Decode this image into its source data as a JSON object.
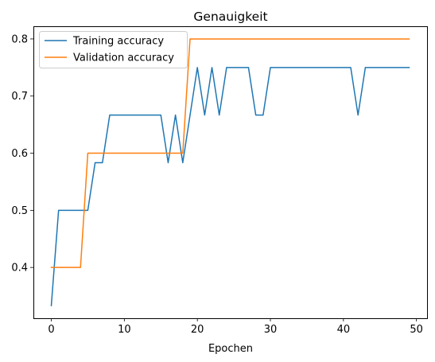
{
  "chart_data": {
    "type": "line",
    "title": "Genauigkeit",
    "xlabel": "Epochen",
    "ylabel": "",
    "xlim": [
      -2.45,
      51.45
    ],
    "ylim": [
      0.3111,
      0.8222
    ],
    "xticks": [
      0,
      10,
      20,
      30,
      40,
      50
    ],
    "yticks": [
      0.4,
      0.5,
      0.6,
      0.7,
      0.8
    ],
    "grid": false,
    "legend_position": "upper-left",
    "x": [
      0,
      1,
      2,
      3,
      4,
      5,
      6,
      7,
      8,
      9,
      10,
      11,
      12,
      13,
      14,
      15,
      16,
      17,
      18,
      19,
      20,
      21,
      22,
      23,
      24,
      25,
      26,
      27,
      28,
      29,
      30,
      31,
      32,
      33,
      34,
      35,
      36,
      37,
      38,
      39,
      40,
      41,
      42,
      43,
      44,
      45,
      46,
      47,
      48,
      49
    ],
    "series": [
      {
        "name": "Training accuracy",
        "color": "#1f77b4",
        "values": [
          0.3333,
          0.5,
          0.5,
          0.5,
          0.5,
          0.5,
          0.5833,
          0.5833,
          0.6667,
          0.6667,
          0.6667,
          0.6667,
          0.6667,
          0.6667,
          0.6667,
          0.6667,
          0.5833,
          0.6667,
          0.5833,
          0.6667,
          0.75,
          0.6667,
          0.75,
          0.6667,
          0.75,
          0.75,
          0.75,
          0.75,
          0.6667,
          0.6667,
          0.75,
          0.75,
          0.75,
          0.75,
          0.75,
          0.75,
          0.75,
          0.75,
          0.75,
          0.75,
          0.75,
          0.75,
          0.6667,
          0.75,
          0.75,
          0.75,
          0.75,
          0.75,
          0.75,
          0.75
        ]
      },
      {
        "name": "Validation accuracy",
        "color": "#ff7f0e",
        "values": [
          0.4,
          0.4,
          0.4,
          0.4,
          0.4,
          0.6,
          0.6,
          0.6,
          0.6,
          0.6,
          0.6,
          0.6,
          0.6,
          0.6,
          0.6,
          0.6,
          0.6,
          0.6,
          0.6,
          0.8,
          0.8,
          0.8,
          0.8,
          0.8,
          0.8,
          0.8,
          0.8,
          0.8,
          0.8,
          0.8,
          0.8,
          0.8,
          0.8,
          0.8,
          0.8,
          0.8,
          0.8,
          0.8,
          0.8,
          0.8,
          0.8,
          0.8,
          0.8,
          0.8,
          0.8,
          0.8,
          0.8,
          0.8,
          0.8,
          0.8
        ]
      }
    ]
  }
}
